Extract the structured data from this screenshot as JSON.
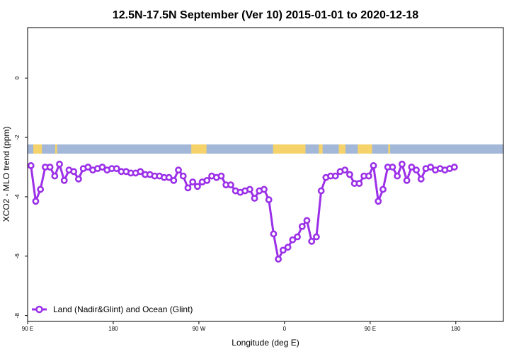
{
  "chart_data": {
    "type": "line",
    "title": "12.5N-17.5N September (Ver 10)   2015-01-01 to 2020-12-18",
    "xlabel": "Longitude (deg E)",
    "ylabel": "XCO2 - MLO trend (ppm)",
    "xlim": [
      90,
      590
    ],
    "ylim": [
      -8.2,
      1.7
    ],
    "x_ticks": [
      {
        "value": 90,
        "label": "90 E"
      },
      {
        "value": 180,
        "label": "180"
      },
      {
        "value": 270,
        "label": "90 W"
      },
      {
        "value": 360,
        "label": "0"
      },
      {
        "value": 450,
        "label": "90 E"
      },
      {
        "value": 540,
        "label": "180"
      }
    ],
    "y_ticks": [
      {
        "value": 0,
        "label": "0"
      },
      {
        "value": -2,
        "label": "-2"
      },
      {
        "value": -4,
        "label": "-4"
      },
      {
        "value": -6,
        "label": "-6"
      },
      {
        "value": -8,
        "label": "-8"
      }
    ],
    "grid": false,
    "legend_position": "bottom-left",
    "series": [
      {
        "name": "Land (Nadir&Glint) and Ocean (Glint)",
        "color": "#9b30e8",
        "x": [
          93.5,
          98.5,
          103.5,
          108.5,
          113.5,
          118.5,
          123.5,
          128.5,
          133.5,
          138.5,
          143.5,
          148.5,
          153.5,
          158.5,
          163.5,
          168.5,
          173.5,
          178.5,
          183.5,
          188.5,
          193.5,
          198.5,
          203.5,
          208.5,
          213.5,
          218.5,
          223.5,
          228.5,
          233.5,
          238.5,
          243.5,
          248.5,
          253.5,
          258.5,
          263.5,
          268.5,
          273.5,
          278.5,
          283.5,
          288.5,
          293.5,
          298.5,
          303.5,
          308.5,
          313.5,
          318.5,
          323.5,
          328.5,
          333.5,
          338.5,
          343.5,
          348.5,
          353.5,
          358.5,
          363.5,
          368.5,
          373.5,
          378.5,
          383.5,
          388.5,
          393.5,
          398.5,
          403.5,
          408.5,
          413.5,
          418.5,
          423.5,
          428.5,
          433.5,
          438.5,
          443.5,
          448.5,
          453.5,
          458.5,
          463.5,
          468.5,
          473.5,
          478.5,
          483.5,
          488.5,
          493.5,
          498.5,
          503.5,
          508.5,
          513.5,
          518.5,
          523.5,
          528.5,
          533.5,
          538.5
        ],
        "y": [
          -2.95,
          -4.15,
          -3.75,
          -3.0,
          -3.0,
          -3.3,
          -2.9,
          -3.45,
          -3.1,
          -3.15,
          -3.4,
          -3.05,
          -3.0,
          -3.1,
          -3.05,
          -3.0,
          -3.1,
          -3.05,
          -3.05,
          -3.15,
          -3.15,
          -3.2,
          -3.2,
          -3.15,
          -3.25,
          -3.25,
          -3.3,
          -3.3,
          -3.35,
          -3.35,
          -3.45,
          -3.1,
          -3.3,
          -3.7,
          -3.5,
          -3.65,
          -3.5,
          -3.45,
          -3.3,
          -3.35,
          -3.3,
          -3.6,
          -3.6,
          -3.8,
          -3.85,
          -3.8,
          -3.75,
          -4.05,
          -3.8,
          -3.75,
          -4.1,
          -5.25,
          -6.1,
          -5.8,
          -5.7,
          -5.45,
          -5.35,
          -5.0,
          -4.8,
          -5.5,
          -5.35,
          -3.8,
          -3.35,
          -3.3,
          -3.3,
          -3.15,
          -3.1,
          -3.25,
          -3.55,
          -3.55,
          -3.3,
          -3.3,
          -2.95,
          -4.15,
          -3.75,
          -3.0,
          -3.0,
          -3.3,
          -2.9,
          -3.45,
          -3.0,
          -3.1,
          -3.4,
          -3.05,
          -3.0,
          -3.1,
          -3.05,
          -3.1,
          -3.05,
          -3.0
        ]
      }
    ],
    "background_strip": {
      "description": "land/ocean map strip",
      "ocean_color": "#a3b8d8",
      "land_color": "#f5d36a",
      "land_segments": [
        [
          96,
          105
        ],
        [
          119,
          121
        ],
        [
          262,
          278
        ],
        [
          348,
          382
        ],
        [
          396,
          400
        ],
        [
          417,
          424
        ],
        [
          437,
          452
        ],
        [
          469,
          471
        ]
      ]
    }
  }
}
